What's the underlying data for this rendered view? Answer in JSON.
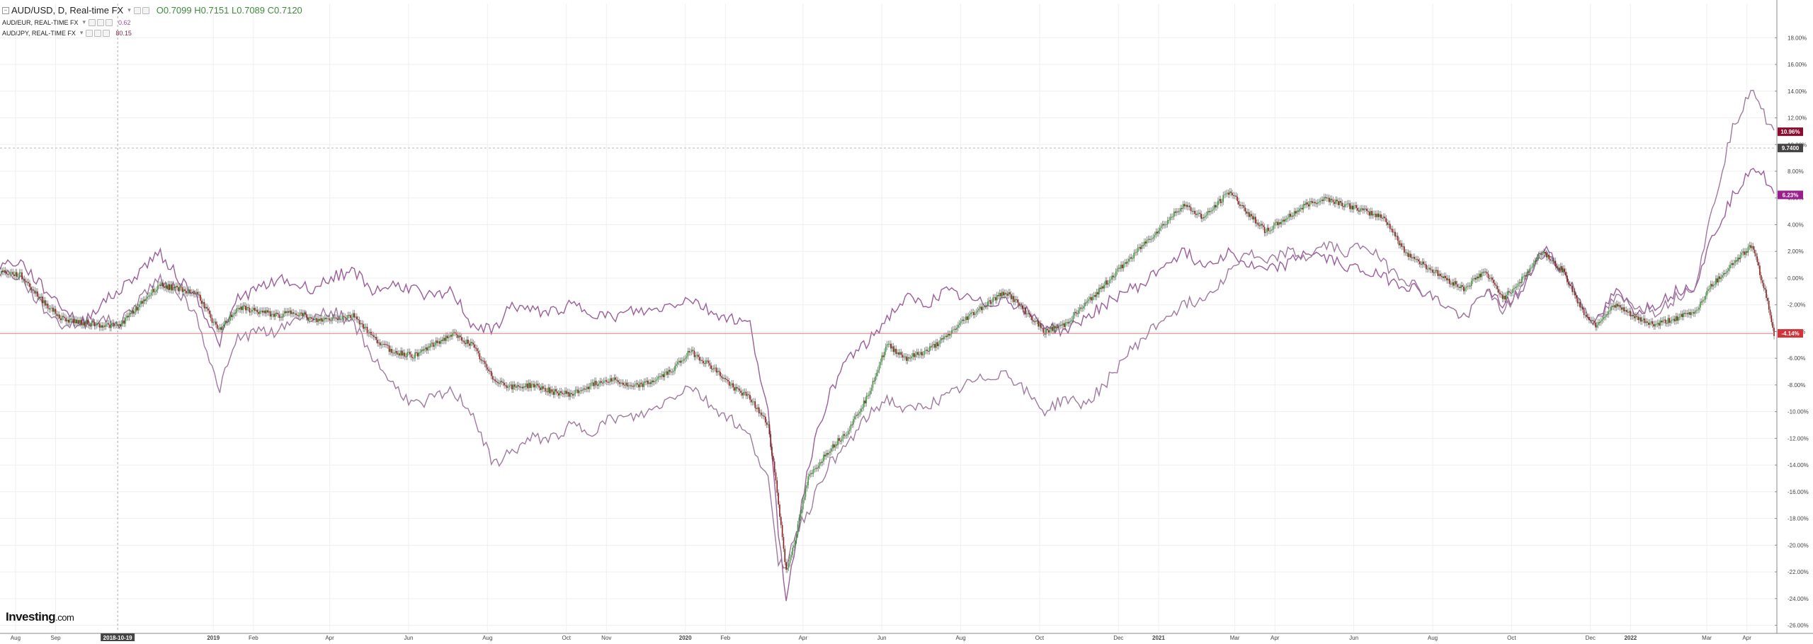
{
  "legend": {
    "main": {
      "symbol": "AUD/USD, D, Real-time FX",
      "open": "O0.7099",
      "high": "H0.7151",
      "low": "L0.7089",
      "close": "C0.7120"
    },
    "compare": [
      {
        "symbol": "AUD/EUR, REAL-TIME FX",
        "value": "0.62",
        "color": "#9b4d9b"
      },
      {
        "symbol": "AUD/JPY, REAL-TIME FX",
        "value": "80.15",
        "color": "#7d2a4a"
      }
    ]
  },
  "brand": {
    "name": "Investing",
    "suffix": ".com"
  },
  "colors": {
    "up": "#3a9a3a",
    "down": "#8b1a1a",
    "wick": "#555555",
    "eur": "#9b5e9b",
    "jpy": "#a07aa0",
    "zero_line": "#d07a7a",
    "grid": "#efefef",
    "axis": "#888888",
    "badge_main": "#8b0c2e",
    "badge_eur": "#9b1e8e",
    "badge_jpy": "#8b0c2e",
    "badge_cross": "#444444"
  },
  "chart_data": {
    "type": "line",
    "title": "AUD/USD, D, Real-time FX",
    "ylim": [
      -26.5,
      19.5
    ],
    "y_ticks": [
      18,
      16,
      14,
      12,
      10,
      8,
      6,
      4,
      2,
      0,
      -2,
      -4,
      -6,
      -8,
      -10,
      -12,
      -14,
      -16,
      -18,
      -20,
      -22,
      -24,
      -26
    ],
    "y_tick_labels": [
      "18.00%",
      "16.00%",
      "14.00%",
      "12.00%",
      "10.00%",
      "8.00%",
      "6.00%",
      "4.00%",
      "2.00%",
      "0.00%",
      "-2.00%",
      "-4.00%",
      "-6.00%",
      "-8.00%",
      "-10.00%",
      "-12.00%",
      "-14.00%",
      "-16.00%",
      "-18.00%",
      "-20.00%",
      "-22.00%",
      "-24.00%",
      "-26.00%"
    ],
    "x_range": [
      "2018-07-20",
      "2022-04-22"
    ],
    "x_ticks": [
      {
        "date": "2018-08-01",
        "label": "Aug"
      },
      {
        "date": "2018-09-01",
        "label": "Sep"
      },
      {
        "date": "2019-01-01",
        "label": "2019"
      },
      {
        "date": "2019-02-01",
        "label": "Feb"
      },
      {
        "date": "2019-04-01",
        "label": "Apr"
      },
      {
        "date": "2019-06-01",
        "label": "Jun"
      },
      {
        "date": "2019-08-01",
        "label": "Aug"
      },
      {
        "date": "2019-10-01",
        "label": "Oct"
      },
      {
        "date": "2019-11-01",
        "label": "Nov"
      },
      {
        "date": "2020-01-01",
        "label": "2020"
      },
      {
        "date": "2020-02-01",
        "label": "Feb"
      },
      {
        "date": "2020-04-01",
        "label": "Apr"
      },
      {
        "date": "2020-06-01",
        "label": "Jun"
      },
      {
        "date": "2020-08-01",
        "label": "Aug"
      },
      {
        "date": "2020-10-01",
        "label": "Oct"
      },
      {
        "date": "2020-12-01",
        "label": "Dec"
      },
      {
        "date": "2021-01-01",
        "label": "2021"
      },
      {
        "date": "2021-03-01",
        "label": "Mar"
      },
      {
        "date": "2021-04-01",
        "label": "Apr"
      },
      {
        "date": "2021-06-01",
        "label": "Jun"
      },
      {
        "date": "2021-08-01",
        "label": "Aug"
      },
      {
        "date": "2021-10-01",
        "label": "Oct"
      },
      {
        "date": "2021-12-01",
        "label": "Dec"
      },
      {
        "date": "2022-01-01",
        "label": "2022"
      },
      {
        "date": "2022-03-01",
        "label": "Mar"
      },
      {
        "date": "2022-04-01",
        "label": "Apr"
      }
    ],
    "crosshair": {
      "date": "2018-10-19",
      "label": "2018-10-19",
      "y_value": 9.74,
      "y_label": "9.7400"
    },
    "reference_line": {
      "value": -4.14
    },
    "series": [
      {
        "name": "AUD/USD",
        "style": "candlestick",
        "last_label": "-4.14%",
        "x": [
          "2018-07-20",
          "2018-08-05",
          "2018-08-20",
          "2018-09-05",
          "2018-09-20",
          "2018-10-05",
          "2018-10-20",
          "2018-11-05",
          "2018-11-20",
          "2018-12-05",
          "2018-12-20",
          "2019-01-05",
          "2019-01-20",
          "2019-02-05",
          "2019-02-20",
          "2019-03-05",
          "2019-03-20",
          "2019-04-05",
          "2019-04-20",
          "2019-05-05",
          "2019-05-20",
          "2019-06-05",
          "2019-06-20",
          "2019-07-05",
          "2019-07-20",
          "2019-08-05",
          "2019-08-20",
          "2019-09-05",
          "2019-09-20",
          "2019-10-05",
          "2019-10-20",
          "2019-11-05",
          "2019-11-20",
          "2019-12-05",
          "2019-12-20",
          "2020-01-05",
          "2020-01-20",
          "2020-02-05",
          "2020-02-20",
          "2020-03-05",
          "2020-03-12",
          "2020-03-19",
          "2020-03-26",
          "2020-04-05",
          "2020-04-20",
          "2020-05-05",
          "2020-05-20",
          "2020-06-05",
          "2020-06-20",
          "2020-07-05",
          "2020-07-20",
          "2020-08-05",
          "2020-08-20",
          "2020-09-05",
          "2020-09-20",
          "2020-10-05",
          "2020-10-20",
          "2020-11-05",
          "2020-11-20",
          "2020-12-05",
          "2020-12-20",
          "2021-01-05",
          "2021-01-20",
          "2021-02-05",
          "2021-02-25",
          "2021-03-10",
          "2021-03-25",
          "2021-04-10",
          "2021-04-25",
          "2021-05-10",
          "2021-05-25",
          "2021-06-10",
          "2021-06-25",
          "2021-07-10",
          "2021-07-25",
          "2021-08-10",
          "2021-08-25",
          "2021-09-10",
          "2021-09-25",
          "2021-10-10",
          "2021-10-25",
          "2021-11-10",
          "2021-11-25",
          "2021-12-05",
          "2021-12-20",
          "2022-01-05",
          "2022-01-20",
          "2022-02-05",
          "2022-02-20",
          "2022-03-05",
          "2022-03-20",
          "2022-04-05",
          "2022-04-15",
          "2022-04-22"
        ],
        "values": [
          0.5,
          0.2,
          -1.5,
          -3.0,
          -3.3,
          -3.5,
          -3.6,
          -2.0,
          -0.5,
          -0.8,
          -1.2,
          -4.0,
          -2.2,
          -2.5,
          -2.8,
          -2.5,
          -3.2,
          -3.0,
          -2.8,
          -4.5,
          -5.5,
          -5.8,
          -5.0,
          -4.2,
          -5.0,
          -7.5,
          -8.2,
          -8.0,
          -8.5,
          -8.7,
          -8.0,
          -7.5,
          -8.2,
          -7.8,
          -7.0,
          -5.5,
          -6.5,
          -8.0,
          -9.0,
          -11.0,
          -16.0,
          -22.0,
          -19.5,
          -15.0,
          -13.0,
          -11.5,
          -9.0,
          -5.0,
          -6.0,
          -5.5,
          -4.5,
          -3.0,
          -2.0,
          -1.0,
          -2.5,
          -4.0,
          -3.5,
          -2.0,
          -0.5,
          1.0,
          2.5,
          4.0,
          5.5,
          4.5,
          6.5,
          5.0,
          3.5,
          4.5,
          5.5,
          6.0,
          5.5,
          5.0,
          4.5,
          2.0,
          1.0,
          0.0,
          -0.8,
          0.5,
          -1.5,
          0.0,
          2.0,
          0.5,
          -2.5,
          -3.5,
          -2.0,
          -3.0,
          -3.5,
          -3.0,
          -2.5,
          -0.5,
          1.0,
          2.5,
          -1.0,
          -4.14
        ]
      },
      {
        "name": "AUD/EUR",
        "style": "line",
        "last_label": "6.23%",
        "x": [
          "2018-07-20",
          "2018-08-05",
          "2018-08-20",
          "2018-09-05",
          "2018-09-20",
          "2018-10-05",
          "2018-10-20",
          "2018-11-05",
          "2018-11-20",
          "2018-12-05",
          "2018-12-20",
          "2019-01-05",
          "2019-01-20",
          "2019-02-05",
          "2019-02-20",
          "2019-03-05",
          "2019-03-20",
          "2019-04-05",
          "2019-04-20",
          "2019-05-05",
          "2019-05-20",
          "2019-06-05",
          "2019-06-20",
          "2019-07-05",
          "2019-07-20",
          "2019-08-05",
          "2019-08-20",
          "2019-09-05",
          "2019-09-20",
          "2019-10-05",
          "2019-10-20",
          "2019-11-05",
          "2019-11-20",
          "2019-12-05",
          "2019-12-20",
          "2020-01-05",
          "2020-01-20",
          "2020-02-05",
          "2020-02-20",
          "2020-03-05",
          "2020-03-12",
          "2020-03-19",
          "2020-03-26",
          "2020-04-05",
          "2020-04-20",
          "2020-05-05",
          "2020-05-20",
          "2020-06-05",
          "2020-06-20",
          "2020-07-05",
          "2020-07-20",
          "2020-08-05",
          "2020-08-20",
          "2020-09-05",
          "2020-09-20",
          "2020-10-05",
          "2020-10-20",
          "2020-11-05",
          "2020-11-20",
          "2020-12-05",
          "2020-12-20",
          "2021-01-05",
          "2021-01-20",
          "2021-02-05",
          "2021-02-25",
          "2021-03-10",
          "2021-03-25",
          "2021-04-10",
          "2021-04-25",
          "2021-05-10",
          "2021-05-25",
          "2021-06-10",
          "2021-06-25",
          "2021-07-10",
          "2021-07-25",
          "2021-08-10",
          "2021-08-25",
          "2021-09-10",
          "2021-09-25",
          "2021-10-10",
          "2021-10-25",
          "2021-11-10",
          "2021-11-25",
          "2021-12-05",
          "2021-12-20",
          "2022-01-05",
          "2022-01-20",
          "2022-02-05",
          "2022-02-20",
          "2022-03-05",
          "2022-03-20",
          "2022-04-05",
          "2022-04-15",
          "2022-04-22"
        ],
        "values": [
          1.0,
          1.2,
          -0.5,
          -2.0,
          -3.5,
          -2.0,
          -1.0,
          0.5,
          2.0,
          0.0,
          -1.5,
          -5.0,
          -1.5,
          -0.8,
          0.0,
          -0.5,
          -0.8,
          0.2,
          0.5,
          -1.0,
          -0.5,
          -0.8,
          -1.5,
          -1.0,
          -3.5,
          -4.0,
          -2.0,
          -2.5,
          -2.5,
          -2.0,
          -2.5,
          -3.0,
          -2.5,
          -2.5,
          -2.0,
          -1.5,
          -2.5,
          -3.0,
          -3.5,
          -10.0,
          -18.0,
          -24.0,
          -20.0,
          -14.0,
          -9.0,
          -6.0,
          -5.0,
          -3.0,
          -1.5,
          -2.0,
          -1.0,
          -1.5,
          -2.0,
          -1.5,
          -2.5,
          -3.5,
          -4.0,
          -3.0,
          -2.0,
          -1.0,
          -0.5,
          1.0,
          2.0,
          1.0,
          2.0,
          1.0,
          0.5,
          1.0,
          2.0,
          1.5,
          1.0,
          0.5,
          0.0,
          -0.5,
          -1.0,
          -2.0,
          -3.0,
          -1.0,
          -2.0,
          -1.0,
          2.5,
          0.5,
          -2.0,
          -3.5,
          -1.0,
          -2.5,
          -2.0,
          -1.0,
          -0.5,
          3.0,
          6.0,
          8.5,
          7.5,
          6.23
        ]
      },
      {
        "name": "AUD/JPY",
        "style": "line",
        "last_label": "10.96%",
        "x": [
          "2018-07-20",
          "2018-08-05",
          "2018-08-20",
          "2018-09-05",
          "2018-09-20",
          "2018-10-05",
          "2018-10-20",
          "2018-11-05",
          "2018-11-20",
          "2018-12-05",
          "2018-12-20",
          "2019-01-05",
          "2019-01-20",
          "2019-02-05",
          "2019-02-20",
          "2019-03-05",
          "2019-03-20",
          "2019-04-05",
          "2019-04-20",
          "2019-05-05",
          "2019-05-20",
          "2019-06-05",
          "2019-06-20",
          "2019-07-05",
          "2019-07-20",
          "2019-08-05",
          "2019-08-20",
          "2019-09-05",
          "2019-09-20",
          "2019-10-05",
          "2019-10-20",
          "2019-11-05",
          "2019-11-20",
          "2019-12-05",
          "2019-12-20",
          "2020-01-05",
          "2020-01-20",
          "2020-02-05",
          "2020-02-20",
          "2020-03-05",
          "2020-03-12",
          "2020-03-19",
          "2020-03-26",
          "2020-04-05",
          "2020-04-20",
          "2020-05-05",
          "2020-05-20",
          "2020-06-05",
          "2020-06-20",
          "2020-07-05",
          "2020-07-20",
          "2020-08-05",
          "2020-08-20",
          "2020-09-05",
          "2020-09-20",
          "2020-10-05",
          "2020-10-20",
          "2020-11-05",
          "2020-11-20",
          "2020-12-05",
          "2020-12-20",
          "2021-01-05",
          "2021-01-20",
          "2021-02-05",
          "2021-02-25",
          "2021-03-10",
          "2021-03-25",
          "2021-04-10",
          "2021-04-25",
          "2021-05-10",
          "2021-05-25",
          "2021-06-10",
          "2021-06-25",
          "2021-07-10",
          "2021-07-25",
          "2021-08-10",
          "2021-08-25",
          "2021-09-10",
          "2021-09-25",
          "2021-10-10",
          "2021-10-25",
          "2021-11-10",
          "2021-11-25",
          "2021-12-05",
          "2021-12-20",
          "2022-01-05",
          "2022-01-20",
          "2022-02-05",
          "2022-02-20",
          "2022-03-05",
          "2022-03-20",
          "2022-04-05",
          "2022-04-15",
          "2022-04-22"
        ],
        "values": [
          0.5,
          0.0,
          -2.0,
          -3.5,
          -3.5,
          -3.0,
          -3.5,
          -1.5,
          0.0,
          -1.0,
          -3.0,
          -8.5,
          -4.5,
          -4.0,
          -4.0,
          -3.0,
          -2.8,
          -2.5,
          -3.5,
          -6.0,
          -8.0,
          -9.5,
          -9.0,
          -8.5,
          -10.0,
          -14.0,
          -13.0,
          -12.0,
          -12.0,
          -11.0,
          -11.5,
          -10.5,
          -10.5,
          -10.0,
          -9.0,
          -8.0,
          -9.5,
          -10.5,
          -12.0,
          -15.0,
          -21.0,
          -21.5,
          -19.0,
          -17.5,
          -14.0,
          -12.5,
          -10.5,
          -9.0,
          -10.0,
          -9.5,
          -9.0,
          -8.0,
          -7.5,
          -7.0,
          -8.5,
          -10.0,
          -9.0,
          -9.5,
          -8.0,
          -6.0,
          -4.5,
          -3.0,
          -2.0,
          -1.5,
          0.5,
          2.0,
          1.0,
          2.0,
          1.5,
          2.5,
          2.0,
          2.5,
          1.0,
          0.0,
          -1.0,
          -2.0,
          -3.0,
          -1.0,
          -2.5,
          -0.5,
          2.0,
          0.5,
          -2.0,
          -3.5,
          -1.5,
          -2.0,
          -2.5,
          -1.5,
          -0.5,
          5.0,
          11.0,
          14.5,
          12.0,
          10.96
        ]
      }
    ]
  }
}
